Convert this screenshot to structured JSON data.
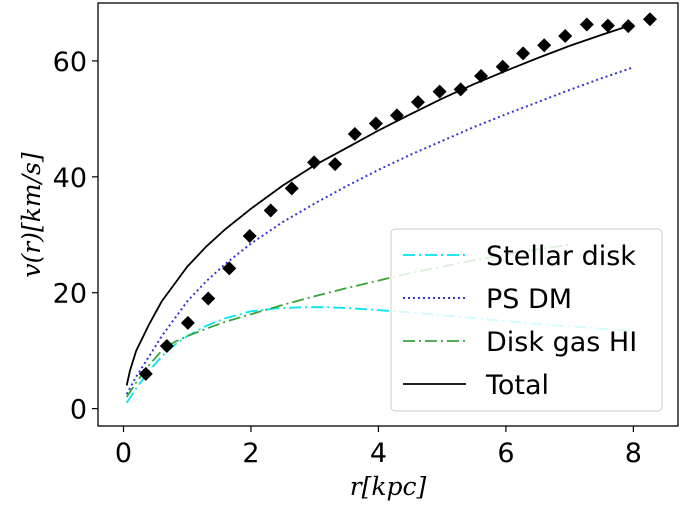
{
  "chart_data": {
    "type": "line",
    "xlabel": "r[kpc]",
    "ylabel": "v(r)[km/s]",
    "xlim": [
      -0.4,
      8.7
    ],
    "ylim": [
      -3,
      70
    ],
    "xticks": [
      0,
      2,
      4,
      6,
      8
    ],
    "yticks": [
      0,
      20,
      40,
      60
    ],
    "legend_position": "lower-right",
    "series": [
      {
        "name": "Stellar disk",
        "style": "dashdot",
        "color": "#00e5ee",
        "x": [
          0.05,
          0.2,
          0.4,
          0.6,
          0.8,
          1.0,
          1.3,
          1.6,
          2.0,
          2.4,
          2.8,
          3.2,
          3.6,
          4.0,
          4.5,
          5.0,
          5.5,
          6.0,
          6.5,
          7.0,
          7.5,
          8.0
        ],
        "y": [
          1.0,
          3.5,
          6.5,
          9.0,
          11.0,
          12.5,
          14.3,
          15.6,
          16.8,
          17.3,
          17.5,
          17.5,
          17.3,
          17.0,
          16.6,
          16.1,
          15.6,
          15.1,
          14.6,
          14.2,
          13.8,
          13.4
        ]
      },
      {
        "name": "PS DM",
        "style": "dotted",
        "color": "#3333dd",
        "x": [
          0.05,
          0.2,
          0.4,
          0.6,
          0.8,
          1.0,
          1.3,
          1.6,
          2.0,
          2.5,
          3.0,
          3.5,
          4.0,
          4.5,
          5.0,
          5.5,
          6.0,
          6.5,
          7.0,
          7.5,
          8.0
        ],
        "y": [
          2.5,
          5.5,
          9.0,
          12.5,
          15.5,
          18.5,
          22.0,
          25.0,
          28.5,
          32.2,
          35.4,
          38.4,
          41.2,
          43.8,
          46.2,
          48.6,
          50.8,
          52.9,
          55.0,
          57.0,
          58.9
        ]
      },
      {
        "name": "Disk gas HI",
        "style": "dashdot",
        "color": "#3aa33a",
        "x": [
          0.05,
          0.2,
          0.4,
          0.6,
          0.8,
          1.0,
          1.3,
          1.6,
          2.0,
          2.5,
          3.0,
          3.5,
          4.0,
          4.5,
          5.0,
          5.5,
          6.0,
          6.5,
          7.0
        ],
        "y": [
          2.0,
          4.5,
          7.5,
          10.0,
          11.5,
          12.5,
          13.8,
          15.0,
          16.3,
          17.9,
          19.4,
          20.8,
          22.1,
          23.4,
          24.5,
          25.6,
          26.6,
          27.5,
          28.3
        ]
      },
      {
        "name": "Total",
        "style": "solid",
        "color": "#000000",
        "x": [
          0.05,
          0.1,
          0.2,
          0.4,
          0.6,
          0.8,
          1.0,
          1.3,
          1.6,
          2.0,
          2.5,
          3.0,
          3.5,
          4.0,
          4.5,
          5.0,
          5.5,
          6.0,
          6.5,
          7.0,
          7.5,
          8.0
        ],
        "y": [
          4.0,
          6.5,
          10.0,
          14.5,
          18.5,
          21.5,
          24.5,
          28.0,
          31.0,
          34.5,
          38.5,
          42.0,
          45.0,
          48.0,
          50.8,
          53.5,
          56.0,
          58.3,
          60.5,
          62.6,
          64.5,
          66.3
        ]
      }
    ],
    "observed": {
      "marker": "diamond",
      "color": "#000000",
      "x": [
        0.35,
        0.68,
        1.01,
        1.33,
        1.66,
        1.98,
        2.31,
        2.64,
        2.99,
        3.32,
        3.63,
        3.96,
        4.29,
        4.62,
        4.96,
        5.29,
        5.61,
        5.95,
        6.27,
        6.6,
        6.93,
        7.27,
        7.6,
        7.92,
        8.26
      ],
      "y": [
        6.0,
        10.8,
        14.8,
        19.0,
        24.2,
        29.8,
        34.2,
        38.0,
        42.5,
        42.2,
        47.4,
        49.2,
        50.6,
        52.9,
        54.7,
        55.1,
        57.4,
        59.0,
        61.3,
        62.7,
        64.3,
        66.3,
        66.1,
        66.0,
        67.2
      ]
    },
    "legend": [
      "Stellar disk",
      "PS DM",
      "Disk gas HI",
      "Total"
    ]
  }
}
